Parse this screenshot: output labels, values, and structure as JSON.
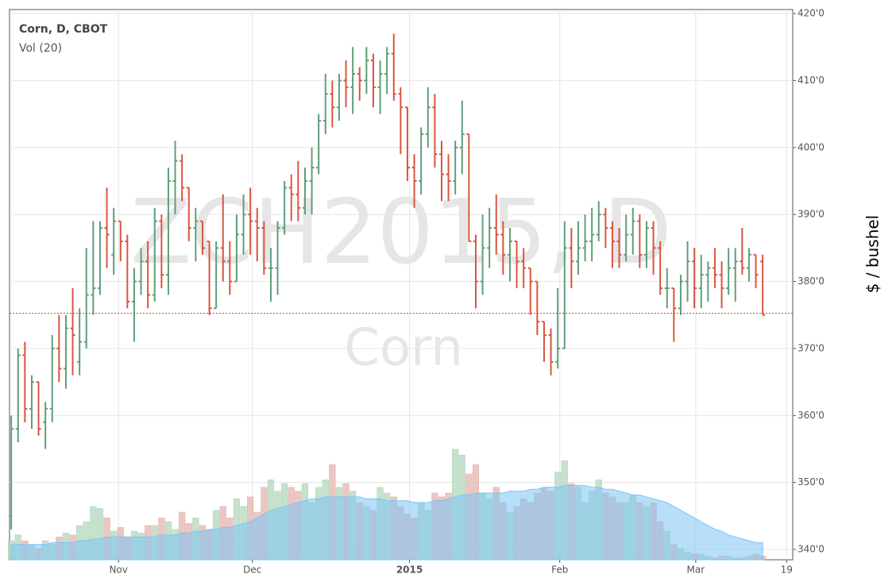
{
  "chart_data": {
    "type": "ohlc",
    "title": "Corn, D, CBOT",
    "subtitle": "Vol (20)",
    "watermark": [
      "ZCH2015, D",
      "Corn"
    ],
    "ylabel": "$ / bushel",
    "xlim": [
      -0.25,
      114.4
    ],
    "xticks": [
      {
        "value": 15.7,
        "label": "Nov"
      },
      {
        "value": 35.3,
        "label": "Dec"
      },
      {
        "value": 58.3,
        "label": "2015"
      },
      {
        "value": 80.3,
        "label": "Feb"
      },
      {
        "value": 100.2,
        "label": "Mar"
      },
      {
        "value": 113.5,
        "label": "19"
      }
    ],
    "ylim": [
      338.46,
      420.6
    ],
    "yticks": [
      {
        "value": 340,
        "label": "340'0"
      },
      {
        "value": 350,
        "label": "350'0"
      },
      {
        "value": 360,
        "label": "360'0"
      },
      {
        "value": 370,
        "label": "370'0"
      },
      {
        "value": 380,
        "label": "380'0"
      },
      {
        "value": 390,
        "label": "390'0"
      },
      {
        "value": 400,
        "label": "400'0"
      },
      {
        "value": 410,
        "label": "410'0"
      },
      {
        "value": 420,
        "label": "420'0"
      }
    ],
    "grid": true,
    "up_color": "#5f9e7a",
    "down_color": "#d9553f",
    "open": [
      345,
      358,
      369,
      361,
      365,
      359,
      361,
      370,
      367,
      373,
      368,
      371,
      378,
      379,
      388,
      384,
      389,
      386,
      377,
      380,
      383,
      378,
      389,
      381,
      395,
      398,
      394,
      388,
      389,
      386,
      376,
      385,
      383,
      380,
      387,
      390,
      389,
      388,
      382,
      382,
      388,
      394,
      393,
      391,
      395,
      397,
      404,
      408,
      406,
      410,
      409,
      411,
      410,
      413,
      409,
      411,
      414,
      408,
      406,
      397,
      395,
      402,
      406,
      399,
      396,
      395,
      400,
      402,
      386,
      380,
      385,
      388,
      387,
      384,
      386,
      383,
      382,
      380,
      374,
      372,
      368,
      370,
      385,
      383,
      385,
      386,
      387,
      390,
      388,
      386,
      384,
      387,
      389,
      384,
      388,
      385,
      379,
      379,
      376,
      380,
      383,
      379,
      381,
      382,
      381,
      379,
      382,
      383,
      382,
      384,
      383
    ],
    "high": [
      360,
      370,
      371,
      366,
      365,
      362,
      372,
      375,
      375,
      379,
      376,
      385,
      389,
      389,
      394,
      391,
      389,
      387,
      382,
      385,
      386,
      391,
      390,
      397,
      401,
      399,
      394,
      391,
      389,
      386,
      386,
      393,
      386,
      390,
      393,
      394,
      391,
      389,
      385,
      389,
      395,
      396,
      398,
      397,
      400,
      405,
      411,
      410,
      411,
      413,
      415,
      412,
      415,
      414,
      413,
      415,
      417,
      409,
      406,
      399,
      403,
      409,
      408,
      401,
      399,
      401,
      407,
      402,
      387,
      390,
      391,
      393,
      389,
      388,
      386,
      385,
      382,
      380,
      374,
      373,
      379,
      389,
      388,
      389,
      390,
      391,
      392,
      391,
      389,
      388,
      390,
      391,
      390,
      389,
      389,
      386,
      382,
      379,
      381,
      386,
      385,
      384,
      383,
      385,
      383,
      385,
      385,
      388,
      385,
      384,
      384
    ],
    "low": [
      343,
      356,
      359,
      358,
      357,
      355,
      359,
      365,
      364,
      366,
      366,
      370,
      375,
      378,
      382,
      381,
      383,
      376,
      371,
      378,
      376,
      377,
      379,
      378,
      390,
      392,
      386,
      383,
      384,
      375,
      376,
      380,
      378,
      380,
      384,
      384,
      383,
      381,
      377,
      378,
      387,
      389,
      389,
      390,
      390,
      396,
      402,
      403,
      404,
      406,
      405,
      407,
      408,
      406,
      405,
      408,
      407,
      399,
      395,
      391,
      393,
      400,
      397,
      392,
      392,
      393,
      396,
      386,
      376,
      378,
      382,
      384,
      381,
      380,
      379,
      379,
      375,
      372,
      368,
      366,
      367,
      370,
      379,
      381,
      383,
      383,
      386,
      385,
      382,
      382,
      383,
      384,
      382,
      382,
      381,
      378,
      376,
      371,
      375,
      377,
      376,
      376,
      377,
      379,
      376,
      378,
      377,
      381,
      380,
      379,
      375
    ],
    "close": [
      358,
      369,
      361,
      365,
      358,
      361,
      370,
      367,
      373,
      372,
      371,
      378,
      379,
      388,
      387,
      389,
      386,
      377,
      380,
      383,
      378,
      389,
      381,
      395,
      398,
      394,
      388,
      389,
      385,
      376,
      385,
      383,
      380,
      387,
      390,
      389,
      388,
      382,
      382,
      388,
      394,
      393,
      391,
      395,
      397,
      404,
      408,
      406,
      410,
      409,
      411,
      410,
      413,
      409,
      411,
      414,
      408,
      406,
      397,
      395,
      402,
      406,
      399,
      396,
      395,
      400,
      402,
      386,
      380,
      385,
      388,
      387,
      384,
      386,
      383,
      382,
      380,
      374,
      372,
      368,
      370,
      385,
      383,
      385,
      386,
      387,
      390,
      388,
      386,
      384,
      387,
      389,
      384,
      388,
      385,
      379,
      379,
      376,
      380,
      383,
      379,
      381,
      382,
      381,
      379,
      382,
      383,
      382,
      384,
      381,
      375
    ],
    "volume_lim": [
      0,
      100
    ],
    "volume": [
      10,
      13,
      10,
      8,
      6,
      10,
      8,
      12,
      14,
      13,
      18,
      20,
      28,
      27,
      22,
      15,
      17,
      12,
      15,
      14,
      18,
      18,
      22,
      20,
      16,
      25,
      19,
      22,
      18,
      16,
      26,
      28,
      22,
      32,
      28,
      33,
      25,
      38,
      42,
      36,
      40,
      38,
      36,
      40,
      30,
      38,
      42,
      50,
      38,
      40,
      36,
      30,
      28,
      26,
      38,
      35,
      33,
      28,
      24,
      22,
      30,
      26,
      35,
      33,
      35,
      58,
      55,
      45,
      50,
      35,
      32,
      38,
      30,
      25,
      28,
      32,
      30,
      35,
      38,
      36,
      46,
      52,
      40,
      38,
      30,
      36,
      42,
      35,
      33,
      30,
      30,
      34,
      30,
      28,
      30,
      20,
      15,
      8,
      6,
      4,
      3,
      3,
      2,
      1,
      2,
      2,
      1,
      1,
      2,
      3,
      2
    ],
    "volume_ma": [
      8,
      8,
      8,
      8,
      8,
      8,
      9,
      9,
      9,
      9,
      10,
      10,
      11,
      11,
      12,
      12,
      12,
      12,
      12,
      12,
      12,
      12,
      13,
      13,
      13,
      14,
      14,
      15,
      15,
      16,
      16,
      17,
      17,
      18,
      19,
      20,
      22,
      24,
      26,
      27,
      28,
      29,
      30,
      31,
      32,
      32,
      33,
      33,
      33,
      33,
      33,
      33,
      32,
      32,
      32,
      31,
      31,
      31,
      31,
      30,
      30,
      30,
      31,
      31,
      32,
      33,
      34,
      34,
      35,
      35,
      35,
      35,
      35,
      36,
      36,
      36,
      37,
      37,
      38,
      38,
      38,
      39,
      39,
      39,
      39,
      38,
      38,
      37,
      37,
      36,
      35,
      34,
      34,
      33,
      32,
      31,
      30,
      28,
      26,
      24,
      22,
      20,
      18,
      16,
      15,
      13,
      12,
      11,
      10,
      9,
      9
    ],
    "volume_up_color": "#b8dcc0",
    "volume_down_color": "#e8b8b4",
    "volume_ma_color": "#7cc4f5",
    "last_price": 375.25,
    "last_price_color": "#e0302a"
  }
}
